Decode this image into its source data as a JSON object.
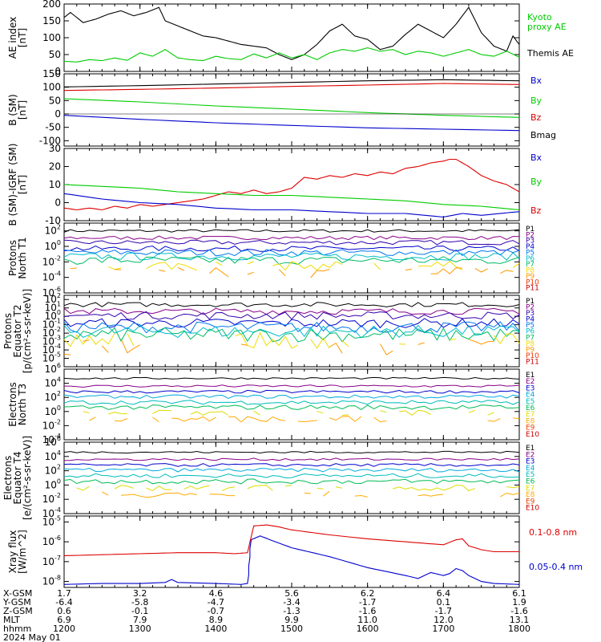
{
  "colors": {
    "black": "#000000",
    "green": "#00cc00",
    "red": "#dd0000",
    "blue": "#0000cc",
    "p": [
      "#000000",
      "#880088",
      "#3300aa",
      "#0000cc",
      "#0077ee",
      "#00bbcc",
      "#00bb66",
      "#eedd00",
      "#ff9900",
      "#ee3300",
      "#cc0000"
    ],
    "e": [
      "#000000",
      "#880088",
      "#0000cc",
      "#00aadd",
      "#00bbbb",
      "#00bb55",
      "#dddd00",
      "#ffaa00",
      "#ee4400",
      "#cc0000"
    ]
  },
  "chart_data": [
    {
      "type": "line",
      "ylabel": [
        "AE index",
        "[nT]"
      ],
      "ylim": [
        0,
        200
      ],
      "yticks": [
        "0",
        "50",
        "100",
        "150",
        "200"
      ],
      "legend": [
        {
          "name": "Kyoto proxy AE",
          "lines": [
            "Kyoto",
            "proxy AE"
          ],
          "color": "green"
        },
        {
          "name": "Themis AE",
          "lines": [
            "Themis AE"
          ],
          "color": "black"
        }
      ],
      "series": [
        {
          "name": "Themis AE",
          "color": "black",
          "x": [
            1200,
            1205,
            1215,
            1225,
            1235,
            1245,
            1255,
            1305,
            1315,
            1320,
            1330,
            1340,
            1350,
            1400,
            1410,
            1420,
            1430,
            1440,
            1450,
            1500,
            1510,
            1520,
            1530,
            1540,
            1550,
            1600,
            1610,
            1620,
            1630,
            1640,
            1650,
            1700,
            1710,
            1720,
            1730,
            1740,
            1750,
            1755,
            1800
          ],
          "values": [
            160,
            175,
            145,
            155,
            170,
            180,
            165,
            175,
            190,
            150,
            135,
            120,
            105,
            100,
            90,
            80,
            75,
            70,
            50,
            35,
            50,
            80,
            120,
            140,
            105,
            95,
            65,
            75,
            110,
            140,
            120,
            100,
            140,
            190,
            115,
            75,
            60,
            105,
            80
          ]
        },
        {
          "name": "Kyoto proxy AE",
          "color": "green",
          "x": [
            1200,
            1210,
            1220,
            1230,
            1240,
            1250,
            1300,
            1310,
            1320,
            1330,
            1340,
            1350,
            1400,
            1410,
            1420,
            1430,
            1440,
            1450,
            1500,
            1510,
            1520,
            1530,
            1540,
            1550,
            1600,
            1610,
            1620,
            1630,
            1640,
            1650,
            1700,
            1710,
            1720,
            1730,
            1740,
            1750,
            1800
          ],
          "values": [
            30,
            28,
            35,
            32,
            40,
            33,
            55,
            45,
            65,
            40,
            35,
            32,
            45,
            38,
            35,
            52,
            40,
            55,
            40,
            50,
            35,
            55,
            65,
            60,
            70,
            60,
            65,
            50,
            60,
            55,
            45,
            55,
            65,
            50,
            45,
            60,
            42
          ]
        }
      ]
    },
    {
      "type": "line",
      "ylabel": [
        "B (SM)",
        "[nT]"
      ],
      "ylim": [
        -120,
        150
      ],
      "yticks": [
        "-100",
        "-50",
        "0",
        "50",
        "100",
        "150"
      ],
      "legend": [
        {
          "name": "Bx",
          "color": "blue"
        },
        {
          "name": "By",
          "color": "green"
        },
        {
          "name": "Bz",
          "color": "red"
        },
        {
          "name": "Bmag",
          "color": "black"
        }
      ],
      "series": [
        {
          "name": "Bmag",
          "color": "black",
          "x": [
            1200,
            1300,
            1400,
            1500,
            1600,
            1700,
            1800
          ],
          "values": [
            101,
            106,
            112,
            118,
            124,
            128,
            124
          ]
        },
        {
          "name": "Bz",
          "color": "red",
          "x": [
            1200,
            1300,
            1400,
            1500,
            1600,
            1700,
            1800
          ],
          "values": [
            88,
            92,
            97,
            103,
            108,
            114,
            110
          ]
        },
        {
          "name": "By",
          "color": "green",
          "x": [
            1200,
            1300,
            1400,
            1500,
            1600,
            1700,
            1800
          ],
          "values": [
            57,
            45,
            30,
            18,
            5,
            -5,
            -13
          ]
        },
        {
          "name": "Bx",
          "color": "blue",
          "x": [
            1200,
            1300,
            1400,
            1500,
            1600,
            1700,
            1800
          ],
          "values": [
            -5,
            -20,
            -33,
            -43,
            -52,
            -57,
            -62
          ]
        }
      ]
    },
    {
      "type": "line",
      "ylabel": [
        "B (SM)-IGRF (SM)",
        "[nT]"
      ],
      "ylim": [
        -10,
        30
      ],
      "yticks": [
        "-10",
        "0",
        "10",
        "20",
        "30"
      ],
      "legend": [
        {
          "name": "Bx",
          "color": "blue"
        },
        {
          "name": "By",
          "color": "green"
        },
        {
          "name": "Bz",
          "color": "red"
        }
      ],
      "series": [
        {
          "name": "Bz",
          "color": "red",
          "x": [
            1200,
            1210,
            1220,
            1230,
            1240,
            1250,
            1300,
            1310,
            1320,
            1330,
            1340,
            1350,
            1400,
            1410,
            1420,
            1430,
            1440,
            1450,
            1500,
            1510,
            1520,
            1530,
            1540,
            1550,
            1600,
            1610,
            1620,
            1630,
            1640,
            1650,
            1700,
            1705,
            1710,
            1720,
            1730,
            1740,
            1750,
            1800
          ],
          "values": [
            -3,
            -4,
            -3,
            -4,
            -2,
            -3,
            -1,
            -2,
            -1,
            0,
            1,
            2,
            4,
            6,
            5,
            7,
            5,
            6,
            8,
            14,
            13,
            15,
            14,
            16,
            15,
            17,
            16,
            19,
            20,
            22,
            23,
            24,
            24,
            20,
            15,
            12,
            10,
            6
          ]
        },
        {
          "name": "By",
          "color": "green",
          "x": [
            1200,
            1230,
            1300,
            1330,
            1400,
            1430,
            1500,
            1530,
            1600,
            1630,
            1700,
            1730,
            1800
          ],
          "values": [
            10,
            9,
            8,
            6,
            5,
            4,
            4,
            3,
            2,
            1,
            -1,
            -2,
            -4
          ]
        },
        {
          "name": "Bx",
          "color": "blue",
          "x": [
            1200,
            1230,
            1300,
            1330,
            1400,
            1430,
            1500,
            1530,
            1600,
            1630,
            1700,
            1715,
            1730,
            1800
          ],
          "values": [
            5,
            2,
            0,
            -1,
            -3,
            -4,
            -4,
            -5,
            -6,
            -6,
            -8,
            -6,
            -7,
            -5
          ]
        }
      ]
    },
    {
      "type": "line",
      "ylabel": [
        "Protons",
        "North T1"
      ],
      "ylim": [
        -6,
        3
      ],
      "yscale": "log",
      "yticks": [
        "10^-6",
        "10^-4",
        "10^-2",
        "10^0",
        "10^2"
      ],
      "legend": [
        "P1",
        "P2",
        "P3",
        "P4",
        "P5",
        "P6",
        "P7",
        "P8",
        "P9",
        "P10",
        "P11"
      ],
      "channel_log_levels": [
        2.0,
        1.1,
        0.5,
        -0.3,
        -0.8,
        -1.3,
        -1.8,
        -2.5,
        -3.4
      ]
    },
    {
      "type": "line",
      "ylabel": [
        "Protons",
        "Equator T2",
        "[p/(cm²-s-sr-keV)]"
      ],
      "ylim": [
        -6,
        2.5
      ],
      "yscale": "log",
      "yticks": [
        "10^-5",
        "10^-4",
        "10^-3",
        "10^-2",
        "10^-1",
        "10^0",
        "10^1",
        "10^2"
      ],
      "legend": [
        "P1",
        "P2",
        "P3",
        "P4",
        "P5",
        "P6",
        "P7",
        "P8",
        "P9",
        "P10",
        "P11"
      ],
      "channel_log_levels": [
        1.4,
        0.6,
        0.1,
        -0.8,
        -1.3,
        -1.8,
        -2.2,
        -2.9,
        -3.7
      ]
    },
    {
      "type": "line",
      "ylabel": [
        "Electrons",
        "North T3"
      ],
      "ylim": [
        -4,
        6
      ],
      "yscale": "log",
      "yticks": [
        "10^-4",
        "10^-2",
        "10^0",
        "10^2",
        "10^4",
        "10^6"
      ],
      "legend": [
        "E1",
        "E2",
        "E3",
        "E4",
        "E5",
        "E6",
        "E7",
        "E8",
        "E9",
        "E10"
      ],
      "channel_log_levels": [
        4.7,
        3.6,
        2.8,
        2.1,
        1.3,
        0.6,
        -0.2,
        -1.1
      ]
    },
    {
      "type": "line",
      "ylabel": [
        "Electrons",
        "Equator T4",
        "[e/(cm²-s-sr-keV)]"
      ],
      "ylim": [
        -4,
        6
      ],
      "yscale": "log",
      "yticks": [
        "10^-4",
        "10^-2",
        "10^0",
        "10^2",
        "10^4",
        "10^6"
      ],
      "legend": [
        "E1",
        "E2",
        "E3",
        "E4",
        "E5",
        "E6",
        "E7",
        "E8",
        "E9",
        "E10"
      ],
      "channel_log_levels": [
        4.6,
        3.6,
        2.8,
        2.1,
        1.3,
        0.5,
        -0.4,
        -1.3
      ]
    },
    {
      "type": "line",
      "ylabel": [
        "Xray flux",
        "[W/m^2]"
      ],
      "ylim": [
        -8.3,
        -4.7
      ],
      "yscale": "log",
      "yticks": [
        "10^-8",
        "10^-7",
        "10^-6",
        "10^-5"
      ],
      "legend": [
        {
          "name": "0.1-0.8 nm",
          "color": "red"
        },
        {
          "name": "0.05-0.4 nm",
          "color": "blue"
        }
      ],
      "series": [
        {
          "name": "0.1-0.8 nm",
          "color": "red",
          "x": [
            1200,
            1230,
            1300,
            1330,
            1400,
            1415,
            1425,
            1430,
            1440,
            1450,
            1500,
            1530,
            1600,
            1630,
            1700,
            1710,
            1715,
            1720,
            1730,
            1740,
            1800
          ],
          "values": [
            -6.7,
            -6.65,
            -6.6,
            -6.55,
            -6.55,
            -6.6,
            -6.55,
            -5.2,
            -5.15,
            -5.25,
            -5.4,
            -5.65,
            -5.85,
            -6.0,
            -6.15,
            -5.9,
            -5.85,
            -6.2,
            -6.4,
            -6.5,
            -6.5
          ]
        },
        {
          "name": "0.05-0.4 nm",
          "color": "blue",
          "x": [
            1200,
            1230,
            1300,
            1320,
            1325,
            1330,
            1400,
            1420,
            1425,
            1428,
            1435,
            1445,
            1500,
            1530,
            1600,
            1630,
            1640,
            1650,
            1700,
            1705,
            1710,
            1715,
            1720,
            1730,
            1740,
            1800
          ],
          "values": [
            -8.15,
            -8.1,
            -8.1,
            -8.05,
            -7.9,
            -8.05,
            -8.1,
            -8.15,
            -8.1,
            -5.9,
            -5.7,
            -5.95,
            -6.3,
            -6.75,
            -7.3,
            -7.7,
            -7.85,
            -7.55,
            -7.7,
            -7.6,
            -7.35,
            -7.45,
            -7.7,
            -8.0,
            -8.1,
            -8.15
          ]
        }
      ]
    }
  ],
  "x_axis": {
    "xlim": [
      1200,
      1800
    ],
    "row_labels": [
      "X-GSM",
      "Y-GSM",
      "Z-GSM",
      "MLT",
      "hhmm"
    ],
    "columns": [
      {
        "x": 1200,
        "values": [
          "1.7",
          "-6.4",
          "0.6",
          "6.9",
          "1200"
        ]
      },
      {
        "x": 1300,
        "values": [
          "3.2",
          "-5.8",
          "-0.1",
          "7.9",
          "1300"
        ]
      },
      {
        "x": 1400,
        "values": [
          "4.6",
          "-4.7",
          "-0.7",
          "8.9",
          "1400"
        ]
      },
      {
        "x": 1500,
        "values": [
          "5.6",
          "-3.4",
          "-1.3",
          "9.9",
          "1500"
        ]
      },
      {
        "x": 1600,
        "values": [
          "6.2",
          "-1.7",
          "-1.6",
          "11.0",
          "1600"
        ]
      },
      {
        "x": 1700,
        "values": [
          "6.4",
          "0.1",
          "-1.7",
          "12.0",
          "1700"
        ]
      },
      {
        "x": 1800,
        "values": [
          "6.1",
          "1.9",
          "-1.6",
          "13.1",
          "1800"
        ]
      }
    ],
    "date": "2024 May 01"
  }
}
